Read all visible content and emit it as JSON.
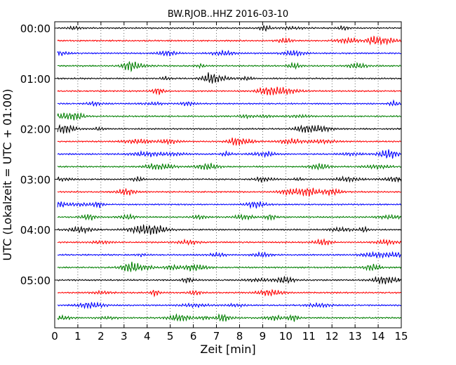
{
  "chart_data": {
    "type": "line",
    "title": "BW.RJOB..HHZ 2016-03-10",
    "xlabel": "Zeit  [min]",
    "ylabel": "UTC (Lokalzeit = UTC + 01:00)",
    "xlim": [
      0,
      15
    ],
    "x_ticks": [
      "0",
      "1",
      "2",
      "3",
      "4",
      "5",
      "6",
      "7",
      "8",
      "9",
      "10",
      "11",
      "12",
      "13",
      "14",
      "15"
    ],
    "y_tick_labels": [
      "00:00",
      "01:00",
      "02:00",
      "03:00",
      "04:00",
      "05:00"
    ],
    "trace_interval_min": 15,
    "trace_count": 24,
    "trace_colors": [
      "#000000",
      "#ff0000",
      "#0000ff",
      "#007f00"
    ],
    "grid_vertical": "dotted",
    "grid_horizontal": false
  }
}
